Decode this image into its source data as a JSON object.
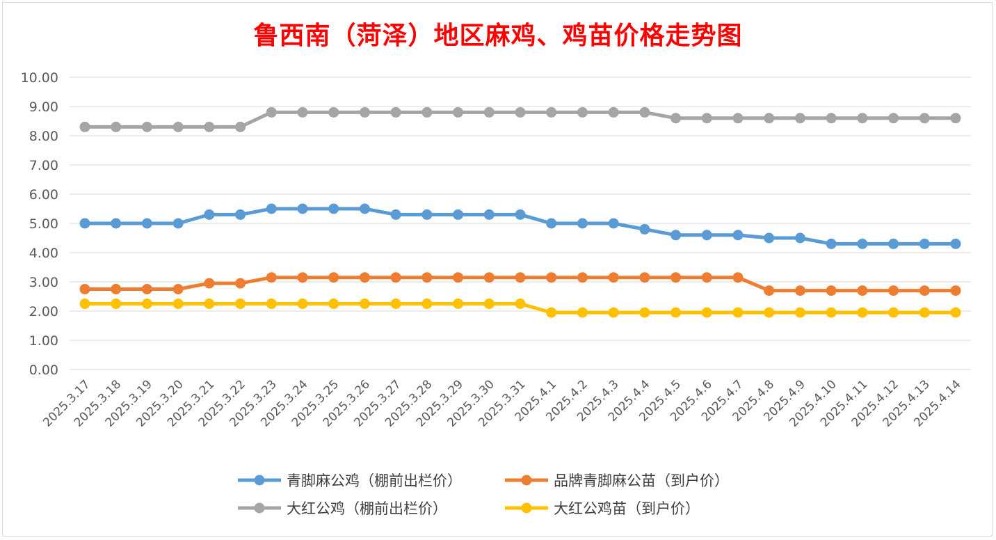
{
  "chart_data": {
    "type": "line",
    "title": "鲁西南（菏泽）地区麻鸡、鸡苗价格走势图",
    "xlabel": "",
    "ylabel": "",
    "ylim": [
      0,
      10
    ],
    "yticks": [
      "0.00",
      "1.00",
      "2.00",
      "3.00",
      "4.00",
      "5.00",
      "6.00",
      "7.00",
      "8.00",
      "9.00",
      "10.00"
    ],
    "grid": true,
    "legend_position": "bottom",
    "categories": [
      "2025.3.17",
      "2025.3.18",
      "2025.3.19",
      "2025.3.20",
      "2025.3.21",
      "2025.3.22",
      "2025.3.23",
      "2025.3.24",
      "2025.3.25",
      "2025.3.26",
      "2025.3.27",
      "2025.3.28",
      "2025.3.29",
      "2025.3.30",
      "2025.3.31",
      "2025.4.1",
      "2025.4.2",
      "2025.4.3",
      "2025.4.4",
      "2025.4.5",
      "2025.4.6",
      "2025.4.7",
      "2025.4.8",
      "2025.4.9",
      "2025.4.10",
      "2025.4.11",
      "2025.4.12",
      "2025.4.13",
      "2025.4.14"
    ],
    "series": [
      {
        "name": "青脚麻公鸡（棚前出栏价）",
        "color": "#5b9bd5",
        "values": [
          5.0,
          5.0,
          5.0,
          5.0,
          5.3,
          5.3,
          5.5,
          5.5,
          5.5,
          5.5,
          5.3,
          5.3,
          5.3,
          5.3,
          5.3,
          5.0,
          5.0,
          5.0,
          4.8,
          4.6,
          4.6,
          4.6,
          4.5,
          4.5,
          4.3,
          4.3,
          4.3,
          4.3,
          4.3
        ]
      },
      {
        "name": "品牌青脚麻公苗（到户价）",
        "color": "#ed7d31",
        "values": [
          2.75,
          2.75,
          2.75,
          2.75,
          2.95,
          2.95,
          3.15,
          3.15,
          3.15,
          3.15,
          3.15,
          3.15,
          3.15,
          3.15,
          3.15,
          3.15,
          3.15,
          3.15,
          3.15,
          3.15,
          3.15,
          3.15,
          2.7,
          2.7,
          2.7,
          2.7,
          2.7,
          2.7,
          2.7
        ]
      },
      {
        "name": "大红公鸡（棚前出栏价）",
        "color": "#a5a5a5",
        "values": [
          8.3,
          8.3,
          8.3,
          8.3,
          8.3,
          8.3,
          8.8,
          8.8,
          8.8,
          8.8,
          8.8,
          8.8,
          8.8,
          8.8,
          8.8,
          8.8,
          8.8,
          8.8,
          8.8,
          8.6,
          8.6,
          8.6,
          8.6,
          8.6,
          8.6,
          8.6,
          8.6,
          8.6,
          8.6
        ]
      },
      {
        "name": "大红公鸡苗（到户价）",
        "color": "#ffc000",
        "values": [
          2.25,
          2.25,
          2.25,
          2.25,
          2.25,
          2.25,
          2.25,
          2.25,
          2.25,
          2.25,
          2.25,
          2.25,
          2.25,
          2.25,
          2.25,
          1.95,
          1.95,
          1.95,
          1.95,
          1.95,
          1.95,
          1.95,
          1.95,
          1.95,
          1.95,
          1.95,
          1.95,
          1.95,
          1.95
        ]
      }
    ]
  }
}
